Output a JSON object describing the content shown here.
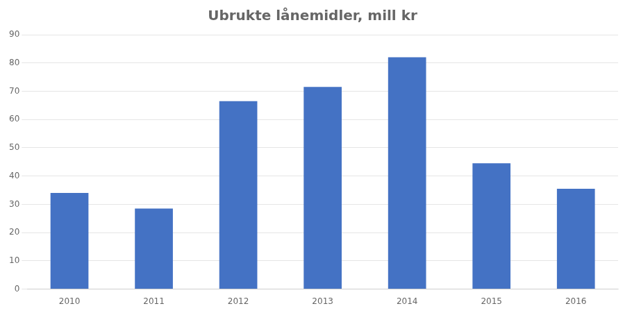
{
  "chart_data": {
    "type": "bar",
    "title": "Ubrukte lånemidler, mill kr",
    "categories": [
      "2010",
      "2011",
      "2012",
      "2013",
      "2014",
      "2015",
      "2016"
    ],
    "values": [
      34,
      28.5,
      66.5,
      71.5,
      82,
      44.5,
      35.5
    ],
    "color": "#4472C4",
    "ylim": [
      0,
      90
    ],
    "yticks": [
      0,
      10,
      20,
      30,
      40,
      50,
      60,
      70,
      80,
      90
    ],
    "grid": true
  }
}
